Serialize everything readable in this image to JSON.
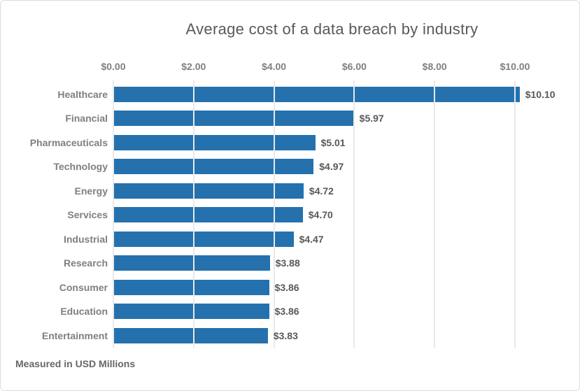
{
  "title": "Average cost of a data breach by industry",
  "footnote": "Measured in USD Millions",
  "colors": {
    "bar": "#2471AE",
    "title_text": "#595959",
    "axis_text": "#7f7f7f",
    "category_text": "#7f7f7f",
    "value_text": "#595959",
    "gridline": "#e9e9e9",
    "border": "#dcdcdc",
    "background": "#ffffff"
  },
  "chart_data": {
    "type": "bar",
    "orientation": "horizontal",
    "title": "Average cost of a data breach by industry",
    "categories": [
      "Healthcare",
      "Financial",
      "Pharmaceuticals",
      "Technology",
      "Energy",
      "Services",
      "Industrial",
      "Research",
      "Consumer",
      "Education",
      "Entertainment"
    ],
    "values": [
      10.1,
      5.97,
      5.01,
      4.97,
      4.72,
      4.7,
      4.47,
      3.88,
      3.86,
      3.86,
      3.83
    ],
    "value_labels": [
      "$10.10",
      "$5.97",
      "$5.01",
      "$4.97",
      "$4.72",
      "$4.70",
      "$4.47",
      "$3.88",
      "$3.86",
      "$3.86",
      "$3.83"
    ],
    "xlabel": "",
    "ylabel": "",
    "xlim": [
      0,
      10
    ],
    "xticks": [
      0,
      2,
      4,
      6,
      8,
      10
    ],
    "xtick_labels": [
      "$0.00",
      "$2.00",
      "$4.00",
      "$6.00",
      "$8.00",
      "$10.00"
    ],
    "grid": "vertical",
    "legend": "none",
    "note": "Measured in USD Millions"
  }
}
